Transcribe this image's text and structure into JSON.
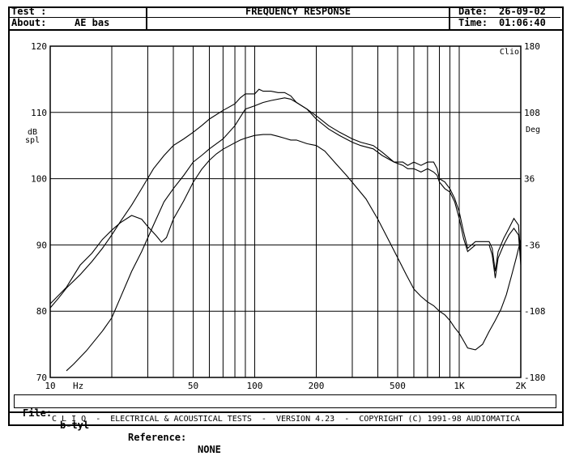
{
  "header": {
    "test_label": "Test :",
    "title": "FREQUENCY RESPONSE",
    "about_label": "About:",
    "about_value": "AE bas",
    "date_label": "Date:",
    "date_value": "26-09-02",
    "time_label": "Time:",
    "time_value": "01:06:40"
  },
  "file_bar": {
    "file_label": "File:",
    "file_value": "b-tyl",
    "reference_label": "Reference:",
    "reference_value": "NONE"
  },
  "footer": {
    "text": "C L I O  -  ELECTRICAL & ACOUSTICAL TESTS  -  VERSION 4.23  -  COPYRIGHT (C) 1991-98 AUDIOMATICA"
  },
  "chart_data": {
    "type": "line",
    "title": "FREQUENCY RESPONSE",
    "xscale": "log",
    "xlim": [
      10,
      2000
    ],
    "x_tick_labels": [
      {
        "value": 10,
        "label": "10"
      },
      {
        "value": 50,
        "label": "50"
      },
      {
        "value": 100,
        "label": "100"
      },
      {
        "value": 200,
        "label": "200"
      },
      {
        "value": 500,
        "label": "500"
      },
      {
        "value": 1000,
        "label": "1K"
      },
      {
        "value": 2000,
        "label": "2K"
      }
    ],
    "x_unit": "Hz",
    "ylabel": "dB spl",
    "ylim": [
      70,
      120
    ],
    "y_ticks": [
      70,
      80,
      90,
      100,
      110,
      120
    ],
    "y2label": "Deg",
    "y2lim": [
      -180,
      180
    ],
    "y2_ticks": [
      -180,
      -108,
      -36,
      36,
      108,
      180
    ],
    "corner_label": "Clio",
    "grid": true,
    "line_color": "#000000",
    "series": [
      {
        "axis": "left",
        "points": [
          [
            10,
            80.5
          ],
          [
            11,
            82
          ],
          [
            12,
            83.5
          ],
          [
            14,
            85.5
          ],
          [
            16,
            87.5
          ],
          [
            18,
            89.5
          ],
          [
            20,
            91.5
          ],
          [
            22,
            93.5
          ],
          [
            25,
            96
          ],
          [
            28,
            98.5
          ],
          [
            32,
            101.5
          ],
          [
            36,
            103.5
          ],
          [
            40,
            105
          ],
          [
            45,
            106
          ],
          [
            50,
            107
          ],
          [
            55,
            108
          ],
          [
            60,
            109
          ],
          [
            70,
            110.3
          ],
          [
            80,
            111.3
          ],
          [
            85,
            112.2
          ],
          [
            90,
            112.8
          ],
          [
            100,
            112.8
          ],
          [
            105,
            113.5
          ],
          [
            110,
            113.2
          ],
          [
            120,
            113.2
          ],
          [
            130,
            113
          ],
          [
            140,
            113
          ],
          [
            150,
            112.5
          ],
          [
            160,
            111.5
          ],
          [
            180,
            110.5
          ],
          [
            200,
            109.5
          ],
          [
            230,
            108
          ],
          [
            260,
            107
          ],
          [
            300,
            106
          ],
          [
            330,
            105.5
          ],
          [
            380,
            105
          ],
          [
            420,
            104
          ],
          [
            480,
            102.5
          ],
          [
            530,
            102.5
          ],
          [
            560,
            102
          ],
          [
            600,
            102.5
          ],
          [
            650,
            102
          ],
          [
            700,
            102.5
          ],
          [
            750,
            102.5
          ],
          [
            780,
            101.5
          ],
          [
            800,
            100
          ],
          [
            850,
            99.5
          ],
          [
            900,
            98.5
          ],
          [
            950,
            97
          ],
          [
            1000,
            95
          ],
          [
            1050,
            92
          ],
          [
            1100,
            89.5
          ],
          [
            1200,
            90.5
          ],
          [
            1300,
            90.5
          ],
          [
            1400,
            90.5
          ],
          [
            1450,
            89.5
          ],
          [
            1500,
            86
          ],
          [
            1550,
            89
          ],
          [
            1650,
            91
          ],
          [
            1750,
            92.5
          ],
          [
            1850,
            94
          ],
          [
            1950,
            93
          ],
          [
            2000,
            88
          ]
        ]
      },
      {
        "axis": "left",
        "points": [
          [
            12,
            71
          ],
          [
            13,
            72
          ],
          [
            15,
            74
          ],
          [
            18,
            77
          ],
          [
            20,
            79
          ],
          [
            22,
            82
          ],
          [
            25,
            86
          ],
          [
            28,
            89
          ],
          [
            32,
            93
          ],
          [
            36,
            96.5
          ],
          [
            40,
            98.5
          ],
          [
            45,
            100.5
          ],
          [
            50,
            102.5
          ],
          [
            55,
            103.5
          ],
          [
            60,
            104.5
          ],
          [
            70,
            106
          ],
          [
            80,
            108
          ],
          [
            90,
            110.5
          ],
          [
            100,
            111
          ],
          [
            110,
            111.5
          ],
          [
            120,
            111.8
          ],
          [
            140,
            112.2
          ],
          [
            150,
            112
          ],
          [
            160,
            111.5
          ],
          [
            180,
            110.5
          ],
          [
            200,
            109
          ],
          [
            230,
            107.5
          ],
          [
            260,
            106.5
          ],
          [
            300,
            105.5
          ],
          [
            330,
            105
          ],
          [
            380,
            104.5
          ],
          [
            420,
            103.5
          ],
          [
            480,
            102.5
          ],
          [
            530,
            102
          ],
          [
            560,
            101.5
          ],
          [
            600,
            101.5
          ],
          [
            650,
            101
          ],
          [
            700,
            101.5
          ],
          [
            750,
            101
          ],
          [
            780,
            100.5
          ],
          [
            800,
            99.5
          ],
          [
            850,
            98.5
          ],
          [
            900,
            98
          ],
          [
            950,
            96.5
          ],
          [
            1000,
            94
          ],
          [
            1050,
            91
          ],
          [
            1100,
            89
          ],
          [
            1200,
            90
          ],
          [
            1300,
            90
          ],
          [
            1400,
            90
          ],
          [
            1450,
            88.5
          ],
          [
            1500,
            85
          ],
          [
            1550,
            88
          ],
          [
            1650,
            90
          ],
          [
            1750,
            91.5
          ],
          [
            1850,
            92.5
          ],
          [
            1950,
            91.5
          ],
          [
            2000,
            87
          ]
        ]
      },
      {
        "axis": "right",
        "points": [
          [
            10,
            -100
          ],
          [
            12,
            -82
          ],
          [
            14,
            -58
          ],
          [
            16,
            -45
          ],
          [
            18,
            -30
          ],
          [
            20,
            -20
          ],
          [
            22,
            -12
          ],
          [
            25,
            -4
          ],
          [
            28,
            -8
          ],
          [
            30,
            -16
          ],
          [
            33,
            -26
          ],
          [
            35,
            -33
          ],
          [
            37,
            -28
          ],
          [
            40,
            -8
          ],
          [
            45,
            12
          ],
          [
            50,
            32
          ],
          [
            55,
            46
          ],
          [
            60,
            56
          ],
          [
            65,
            63
          ],
          [
            70,
            68
          ],
          [
            80,
            75
          ],
          [
            85,
            78
          ],
          [
            90,
            80
          ],
          [
            100,
            83
          ],
          [
            110,
            84
          ],
          [
            120,
            84
          ],
          [
            130,
            82
          ],
          [
            140,
            80
          ],
          [
            150,
            78
          ],
          [
            160,
            78
          ],
          [
            180,
            74
          ],
          [
            200,
            72
          ],
          [
            220,
            66
          ],
          [
            250,
            52
          ],
          [
            280,
            40
          ],
          [
            300,
            32
          ],
          [
            350,
            14
          ],
          [
            400,
            -8
          ],
          [
            450,
            -30
          ],
          [
            500,
            -50
          ],
          [
            550,
            -68
          ],
          [
            600,
            -84
          ],
          [
            650,
            -92
          ],
          [
            700,
            -98
          ],
          [
            750,
            -102
          ],
          [
            800,
            -108
          ],
          [
            850,
            -112
          ],
          [
            900,
            -118
          ],
          [
            950,
            -126
          ],
          [
            1000,
            -132
          ],
          [
            1050,
            -140
          ],
          [
            1100,
            -148
          ],
          [
            1200,
            -150
          ],
          [
            1300,
            -144
          ],
          [
            1400,
            -130
          ],
          [
            1500,
            -118
          ],
          [
            1600,
            -106
          ],
          [
            1700,
            -90
          ],
          [
            1800,
            -70
          ],
          [
            1900,
            -50
          ],
          [
            2000,
            -30
          ]
        ]
      }
    ]
  }
}
